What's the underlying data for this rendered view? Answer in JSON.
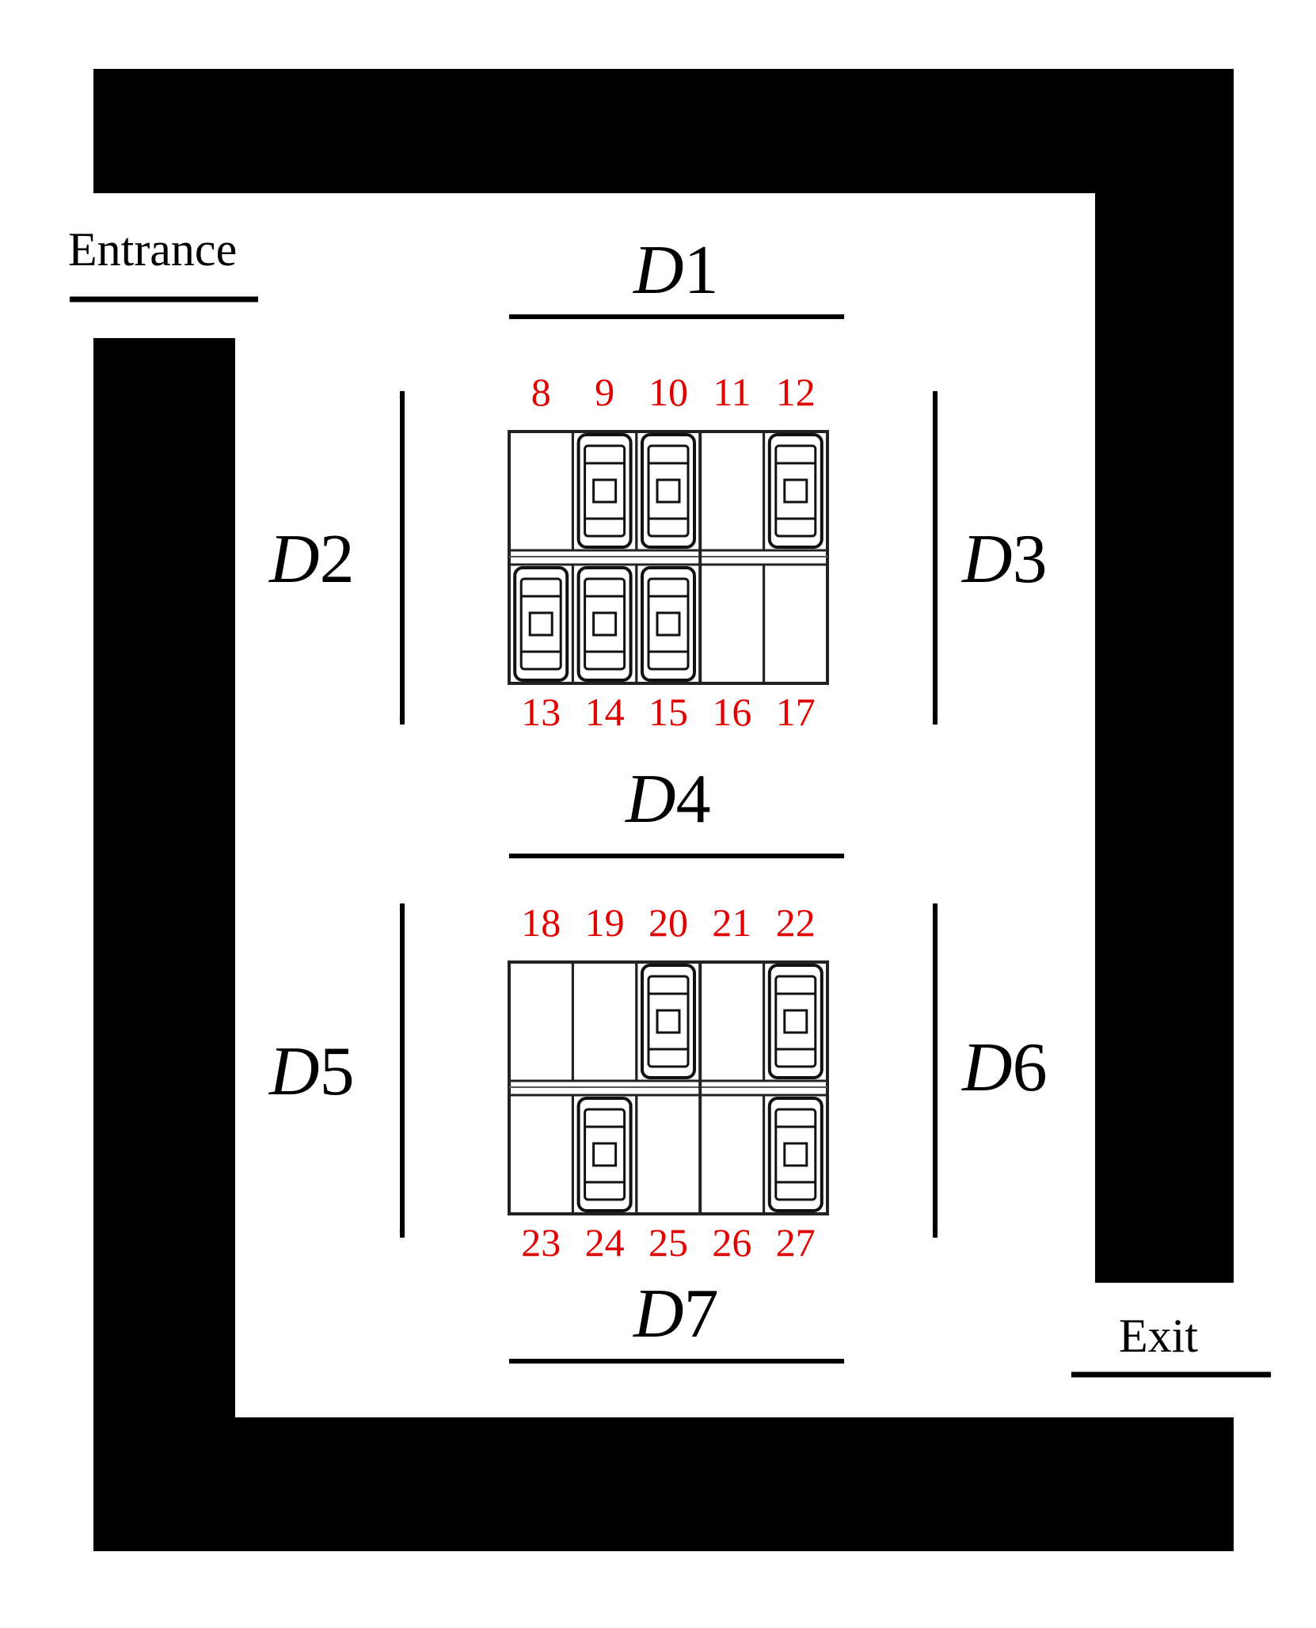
{
  "labels": {
    "entrance": "Entrance",
    "exit": "Exit"
  },
  "dimensions": {
    "d1": {
      "letter": "D",
      "num": "1"
    },
    "d2": {
      "letter": "D",
      "num": "2"
    },
    "d3": {
      "letter": "D",
      "num": "3"
    },
    "d4": {
      "letter": "D",
      "num": "4"
    },
    "d5": {
      "letter": "D",
      "num": "5"
    },
    "d6": {
      "letter": "D",
      "num": "6"
    },
    "d7": {
      "letter": "D",
      "num": "7"
    }
  },
  "blocks": [
    {
      "top_row": [
        {
          "num": "8",
          "occupied": false
        },
        {
          "num": "9",
          "occupied": true
        },
        {
          "num": "10",
          "occupied": true
        },
        {
          "num": "11",
          "occupied": false
        },
        {
          "num": "12",
          "occupied": true
        }
      ],
      "bottom_row": [
        {
          "num": "13",
          "occupied": true
        },
        {
          "num": "14",
          "occupied": true
        },
        {
          "num": "15",
          "occupied": true
        },
        {
          "num": "16",
          "occupied": false
        },
        {
          "num": "17",
          "occupied": false
        }
      ]
    },
    {
      "top_row": [
        {
          "num": "18",
          "occupied": false
        },
        {
          "num": "19",
          "occupied": false
        },
        {
          "num": "20",
          "occupied": true
        },
        {
          "num": "21",
          "occupied": false
        },
        {
          "num": "22",
          "occupied": true
        }
      ],
      "bottom_row": [
        {
          "num": "23",
          "occupied": false
        },
        {
          "num": "24",
          "occupied": true
        },
        {
          "num": "25",
          "occupied": false
        },
        {
          "num": "26",
          "occupied": false
        },
        {
          "num": "27",
          "occupied": true
        }
      ]
    }
  ],
  "colors": {
    "wall": "#000000",
    "slot_number": "#e00000"
  }
}
